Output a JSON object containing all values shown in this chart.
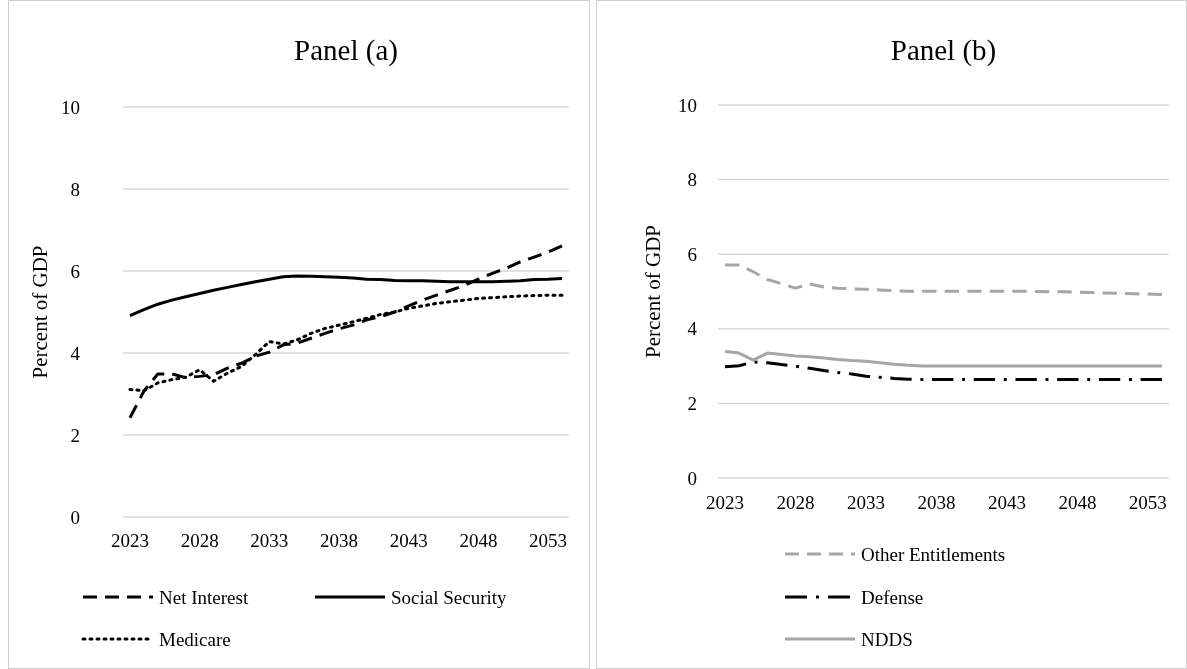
{
  "chart_data": [
    {
      "type": "line",
      "title": "Panel (a)",
      "ylabel": "Percent of GDP",
      "x": [
        2023,
        2024,
        2025,
        2026,
        2027,
        2028,
        2029,
        2030,
        2031,
        2032,
        2033,
        2034,
        2035,
        2036,
        2037,
        2038,
        2039,
        2040,
        2041,
        2042,
        2043,
        2044,
        2045,
        2046,
        2047,
        2048,
        2049,
        2050,
        2051,
        2052,
        2053,
        2054
      ],
      "xlim": [
        2022.5,
        2054.5
      ],
      "xticks": [
        2023,
        2028,
        2033,
        2038,
        2043,
        2048,
        2053
      ],
      "ylim": [
        0,
        10
      ],
      "yticks": [
        0,
        2,
        4,
        6,
        8,
        10
      ],
      "grid": "y",
      "legend": "bottom",
      "series": [
        {
          "name": "Net Interest",
          "color": "#000000",
          "line_style": "dashed",
          "values": [
            2.42,
            3.07,
            3.49,
            3.49,
            3.4,
            3.43,
            3.47,
            3.63,
            3.75,
            3.92,
            4.02,
            4.2,
            4.24,
            4.36,
            4.48,
            4.59,
            4.68,
            4.81,
            4.89,
            5.0,
            5.15,
            5.29,
            5.41,
            5.53,
            5.65,
            5.8,
            5.94,
            6.07,
            6.22,
            6.34,
            6.46,
            6.61
          ]
        },
        {
          "name": "Social Security",
          "color": "#000000",
          "line_style": "solid",
          "values": [
            4.91,
            5.06,
            5.19,
            5.29,
            5.37,
            5.45,
            5.53,
            5.6,
            5.67,
            5.74,
            5.8,
            5.86,
            5.88,
            5.87,
            5.86,
            5.85,
            5.83,
            5.8,
            5.79,
            5.77,
            5.76,
            5.76,
            5.75,
            5.74,
            5.74,
            5.74,
            5.74,
            5.75,
            5.76,
            5.79,
            5.8,
            5.82
          ]
        },
        {
          "name": "Medicare",
          "color": "#000000",
          "line_style": "dotted",
          "values": [
            3.11,
            3.08,
            3.27,
            3.35,
            3.41,
            3.59,
            3.31,
            3.51,
            3.67,
            3.96,
            4.28,
            4.22,
            4.32,
            4.48,
            4.6,
            4.68,
            4.76,
            4.85,
            4.94,
            5.0,
            5.09,
            5.15,
            5.21,
            5.25,
            5.29,
            5.33,
            5.35,
            5.37,
            5.39,
            5.4,
            5.41,
            5.41
          ]
        }
      ]
    },
    {
      "type": "line",
      "title": "Panel (b)",
      "ylabel": "Percent of GDP",
      "x": [
        2023,
        2024,
        2025,
        2026,
        2027,
        2028,
        2029,
        2030,
        2031,
        2032,
        2033,
        2034,
        2035,
        2036,
        2037,
        2038,
        2039,
        2040,
        2041,
        2042,
        2043,
        2044,
        2045,
        2046,
        2047,
        2048,
        2049,
        2050,
        2051,
        2052,
        2053,
        2054
      ],
      "xlim": [
        2022.5,
        2054.5
      ],
      "xticks": [
        2023,
        2028,
        2033,
        2038,
        2043,
        2048,
        2053
      ],
      "ylim": [
        0,
        10
      ],
      "yticks": [
        0,
        2,
        4,
        6,
        8,
        10
      ],
      "grid": "y",
      "legend": "bottom",
      "series": [
        {
          "name": "Other Entitlements",
          "color": "#a6a6a6",
          "line_style": "dashed",
          "values": [
            5.71,
            5.71,
            5.53,
            5.32,
            5.21,
            5.09,
            5.2,
            5.12,
            5.09,
            5.07,
            5.06,
            5.04,
            5.02,
            5.01,
            5.01,
            5.01,
            5.01,
            5.01,
            5.01,
            5.01,
            5.01,
            5.01,
            5.0,
            4.99,
            4.99,
            4.98,
            4.97,
            4.96,
            4.95,
            4.94,
            4.93,
            4.92
          ]
        },
        {
          "name": "Defense",
          "color": "#000000",
          "line_style": "dashdot",
          "values": [
            2.98,
            3.01,
            3.11,
            3.09,
            3.04,
            3.0,
            2.94,
            2.88,
            2.83,
            2.79,
            2.73,
            2.7,
            2.67,
            2.65,
            2.64,
            2.64,
            2.64,
            2.64,
            2.64,
            2.64,
            2.64,
            2.64,
            2.64,
            2.64,
            2.64,
            2.64,
            2.64,
            2.64,
            2.64,
            2.64,
            2.64,
            2.64
          ]
        },
        {
          "name": "NDDS",
          "color": "#a6a6a6",
          "line_style": "solid",
          "values": [
            3.39,
            3.35,
            3.16,
            3.35,
            3.31,
            3.27,
            3.25,
            3.22,
            3.18,
            3.15,
            3.13,
            3.09,
            3.05,
            3.02,
            3.0,
            3.0,
            3.0,
            3.0,
            3.0,
            3.0,
            3.0,
            3.0,
            3.0,
            3.0,
            3.0,
            3.0,
            3.0,
            3.0,
            3.0,
            3.0,
            3.0,
            3.0
          ]
        }
      ]
    }
  ]
}
